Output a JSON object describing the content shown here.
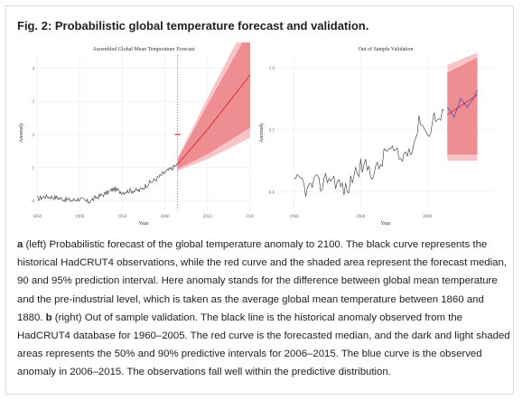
{
  "figure": {
    "title": "Fig. 2: Probabilistic global temperature forecast and validation."
  },
  "caption": {
    "a_label": "a",
    "a_text": " (left) Probabilistic forecast of the global temperature anomaly to 2100. The black curve represents the historical HadCRUT4 observations, while the red curve and the shaded area represent the forecast median, 90 and 95% prediction interval. Here anomaly stands for the difference between global mean temperature and the pre-industrial level, which is taken as the average global mean temperature between 1860 and 1880. ",
    "b_label": "b",
    "b_text": " (right) Out of sample validation. The black line is the historical anomaly observed from the HadCRUT4 database for 1960–2005. The red curve is the forecasted median, and the dark and light shaded areas represents the 50% and 90% predictive intervals for 2006–2015. The blue curve is the observed anomaly in 2006–2015. The observations fall well within the predictive distribution."
  },
  "chart_data": [
    {
      "type": "line",
      "title": "Assembled Global Mean Temperature Forecast",
      "xlabel": "Year",
      "ylabel": "Anomaly",
      "xlim": [
        1850,
        2100
      ],
      "ylim": [
        -0.3,
        4.4
      ],
      "xticks": [
        1850,
        1900,
        1950,
        2000,
        2050,
        2100
      ],
      "yticks": [
        0,
        1,
        2,
        3,
        4
      ],
      "grid": true,
      "observed_years": [
        1850,
        1860,
        1870,
        1880,
        1890,
        1900,
        1910,
        1920,
        1930,
        1940,
        1950,
        1960,
        1970,
        1980,
        1990,
        2000,
        2010,
        2015
      ],
      "observed_values": [
        0.05,
        0.12,
        0.1,
        0.05,
        0.0,
        0.05,
        -0.05,
        0.1,
        0.2,
        0.35,
        0.25,
        0.3,
        0.3,
        0.5,
        0.65,
        0.85,
        1.0,
        1.1
      ],
      "forecast_years": [
        2015,
        2050,
        2100
      ],
      "median": [
        1.1,
        2.15,
        3.8
      ],
      "pi90_lower": [
        0.95,
        1.4,
        2.2
      ],
      "pi90_upper": [
        1.25,
        2.9,
        5.2
      ],
      "pi95_lower": [
        0.9,
        1.25,
        1.9
      ],
      "pi95_upper": [
        1.3,
        3.1,
        5.6
      ],
      "divider_year": 2015,
      "marker": {
        "year": 2015,
        "value": 2.0
      }
    },
    {
      "type": "line",
      "title": "Out of Sample Validation",
      "xlabel": "Year",
      "ylabel": "Anomaly",
      "xlim": [
        1955,
        2020
      ],
      "ylim": [
        -0.15,
        1.1
      ],
      "xticks": [
        1960,
        1980,
        2000
      ],
      "yticks": [
        0.0,
        0.5,
        1.0
      ],
      "ytick_labels": [
        "0.0",
        "0.5",
        "1.0"
      ],
      "grid": true,
      "observed_years": [
        1960,
        1962,
        1964,
        1966,
        1968,
        1970,
        1972,
        1974,
        1976,
        1978,
        1980,
        1982,
        1984,
        1986,
        1988,
        1990,
        1992,
        1994,
        1996,
        1998,
        2000,
        2002,
        2004,
        2005
      ],
      "observed_values": [
        0.05,
        0.1,
        0.0,
        0.08,
        0.05,
        0.12,
        0.1,
        0.05,
        0.0,
        0.15,
        0.2,
        0.2,
        0.15,
        0.22,
        0.35,
        0.32,
        0.25,
        0.33,
        0.4,
        0.6,
        0.45,
        0.6,
        0.58,
        0.65
      ],
      "forecast_years": [
        2006,
        2015
      ],
      "median": [
        0.62,
        0.78
      ],
      "pi50_lower": [
        0.3,
        0.3
      ],
      "pi50_upper": [
        0.96,
        1.08
      ],
      "pi90_lower": [
        0.25,
        0.25
      ],
      "pi90_upper": [
        1.02,
        1.12
      ],
      "validation_years": [
        2006,
        2008,
        2010,
        2012,
        2014,
        2015
      ],
      "validation_values": [
        0.68,
        0.6,
        0.75,
        0.68,
        0.76,
        0.82
      ]
    }
  ]
}
